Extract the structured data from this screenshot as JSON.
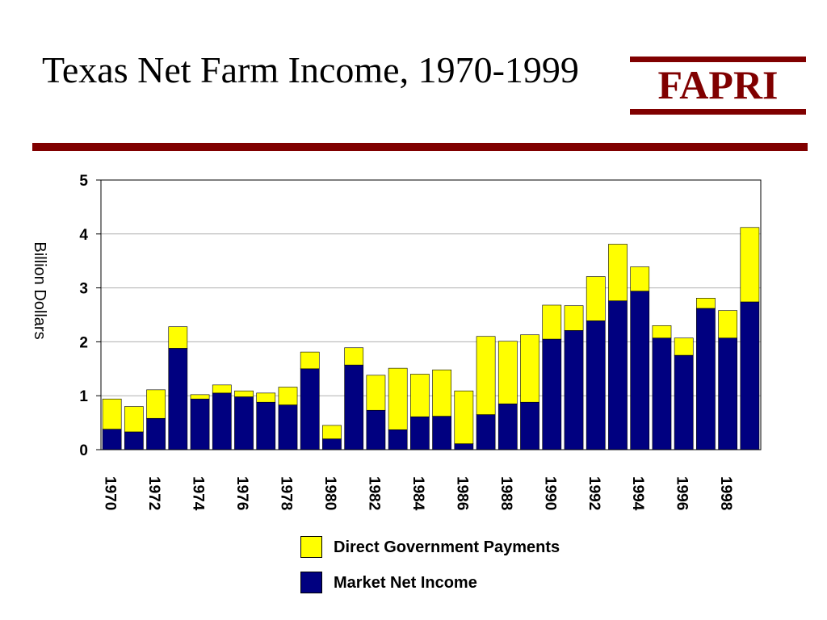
{
  "slide": {
    "title": "Texas Net Farm Income, 1970-1999",
    "logo_text": "FAPRI",
    "accent_color": "#800000"
  },
  "chart_data": {
    "type": "bar",
    "stacked": true,
    "title": "",
    "xlabel": "",
    "ylabel": "Billion Dollars",
    "ylim": [
      0,
      5
    ],
    "yticks": [
      0,
      1,
      2,
      3,
      4,
      5
    ],
    "grid": true,
    "legend_position": "bottom",
    "categories": [
      "1970",
      "1971",
      "1972",
      "1973",
      "1974",
      "1975",
      "1976",
      "1977",
      "1978",
      "1979",
      "1980",
      "1981",
      "1982",
      "1983",
      "1984",
      "1985",
      "1986",
      "1987",
      "1988",
      "1989",
      "1990",
      "1991",
      "1992",
      "1993",
      "1994",
      "1995",
      "1996",
      "1997",
      "1998",
      "1999"
    ],
    "xtick_labels": [
      "1970",
      "",
      "1972",
      "",
      "1974",
      "",
      "1976",
      "",
      "1978",
      "",
      "1980",
      "",
      "1982",
      "",
      "1984",
      "",
      "1986",
      "",
      "1988",
      "",
      "1990",
      "",
      "1992",
      "",
      "1994",
      "",
      "1996",
      "",
      "1998",
      ""
    ],
    "series": [
      {
        "name": "Market Net Income",
        "color": "#000080",
        "values": [
          0.38,
          0.33,
          0.58,
          1.88,
          0.94,
          1.05,
          0.98,
          0.88,
          0.83,
          1.5,
          0.2,
          1.57,
          0.73,
          0.37,
          0.61,
          0.62,
          0.11,
          0.65,
          0.85,
          0.88,
          2.05,
          2.21,
          2.39,
          2.76,
          2.94,
          2.07,
          1.75,
          2.62,
          2.07,
          2.74
        ]
      },
      {
        "name": "Direct Government Payments",
        "color": "#ffff00",
        "values": [
          0.56,
          0.47,
          0.53,
          0.4,
          0.08,
          0.15,
          0.11,
          0.17,
          0.33,
          0.31,
          0.25,
          0.32,
          0.65,
          1.14,
          0.79,
          0.86,
          0.98,
          1.45,
          1.16,
          1.25,
          0.63,
          0.46,
          0.82,
          1.05,
          0.45,
          0.23,
          0.32,
          0.19,
          0.51,
          1.38
        ]
      }
    ],
    "legend": [
      {
        "label": "Direct Government Payments",
        "color": "#ffff00"
      },
      {
        "label": "Market Net Income",
        "color": "#000080"
      }
    ]
  }
}
